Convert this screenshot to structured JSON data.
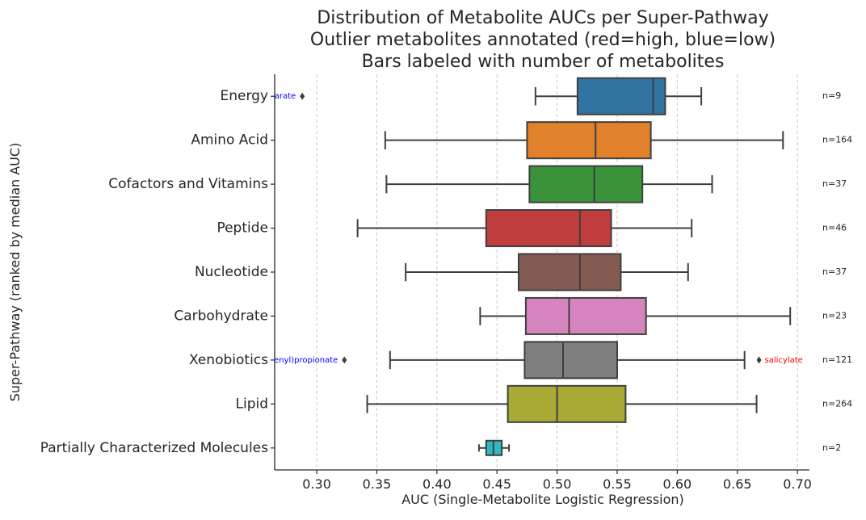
{
  "chart_data": {
    "type": "box",
    "orientation": "horizontal",
    "title": [
      "Distribution of Metabolite AUCs per Super-Pathway",
      "Outlier metabolites annotated (red=high, blue=low)",
      "Bars labeled with number of metabolites"
    ],
    "xlabel": "AUC (Single-Metabolite Logistic Regression)",
    "ylabel": "Super-Pathway (ranked by median AUC)",
    "xlim": [
      0.265,
      0.71
    ],
    "xticks": [
      0.3,
      0.35,
      0.4,
      0.45,
      0.5,
      0.55,
      0.6,
      0.65,
      0.7
    ],
    "xtick_labels": [
      "0.30",
      "0.35",
      "0.40",
      "0.45",
      "0.50",
      "0.55",
      "0.60",
      "0.65",
      "0.70"
    ],
    "grid": "x-dashed",
    "categories": [
      "Energy",
      "Amino Acid",
      "Cofactors and Vitamins",
      "Peptide",
      "Nucleotide",
      "Carbohydrate",
      "Xenobiotics",
      "Lipid",
      "Partially Characterized Molecules"
    ],
    "boxes": [
      {
        "category": "Energy",
        "whisker_low": 0.482,
        "q1": 0.517,
        "median": 0.58,
        "q3": 0.59,
        "whisker_high": 0.62,
        "color": "#3274a1",
        "n_label": "n=9",
        "outliers": [
          {
            "value": 0.288,
            "label": "arate",
            "label_color": "#0000ff",
            "side": "low"
          }
        ]
      },
      {
        "category": "Amino Acid",
        "whisker_low": 0.357,
        "q1": 0.475,
        "median": 0.532,
        "q3": 0.578,
        "whisker_high": 0.688,
        "color": "#e1812c",
        "n_label": "n=164",
        "outliers": []
      },
      {
        "category": "Cofactors and Vitamins",
        "whisker_low": 0.358,
        "q1": 0.477,
        "median": 0.531,
        "q3": 0.571,
        "whisker_high": 0.629,
        "color": "#3a923a",
        "n_label": "n=37",
        "outliers": []
      },
      {
        "category": "Peptide",
        "whisker_low": 0.334,
        "q1": 0.441,
        "median": 0.519,
        "q3": 0.545,
        "whisker_high": 0.612,
        "color": "#c03d3e",
        "n_label": "n=46",
        "outliers": []
      },
      {
        "category": "Nucleotide",
        "whisker_low": 0.374,
        "q1": 0.468,
        "median": 0.519,
        "q3": 0.553,
        "whisker_high": 0.609,
        "color": "#845b53",
        "n_label": "n=37",
        "outliers": []
      },
      {
        "category": "Carbohydrate",
        "whisker_low": 0.436,
        "q1": 0.474,
        "median": 0.51,
        "q3": 0.574,
        "whisker_high": 0.694,
        "color": "#d684bd",
        "n_label": "n=23",
        "outliers": []
      },
      {
        "category": "Xenobiotics",
        "whisker_low": 0.361,
        "q1": 0.473,
        "median": 0.505,
        "q3": 0.55,
        "whisker_high": 0.656,
        "color": "#7f7f7f",
        "n_label": "n=121",
        "outliers": [
          {
            "value": 0.323,
            "label": "henyl)propionate",
            "label_color": "#0000ff",
            "side": "low"
          },
          {
            "value": 0.668,
            "label": "salicylate",
            "label_color": "#ff0000",
            "side": "high"
          }
        ]
      },
      {
        "category": "Lipid",
        "whisker_low": 0.342,
        "q1": 0.459,
        "median": 0.5,
        "q3": 0.557,
        "whisker_high": 0.666,
        "color": "#a9aa35",
        "n_label": "n=264",
        "outliers": []
      },
      {
        "category": "Partially Characterized Molecules",
        "whisker_low": 0.435,
        "q1": 0.441,
        "median": 0.447,
        "q3": 0.454,
        "whisker_high": 0.46,
        "color": "#2eb7c4",
        "n_label": "n=2",
        "outliers": []
      }
    ]
  }
}
